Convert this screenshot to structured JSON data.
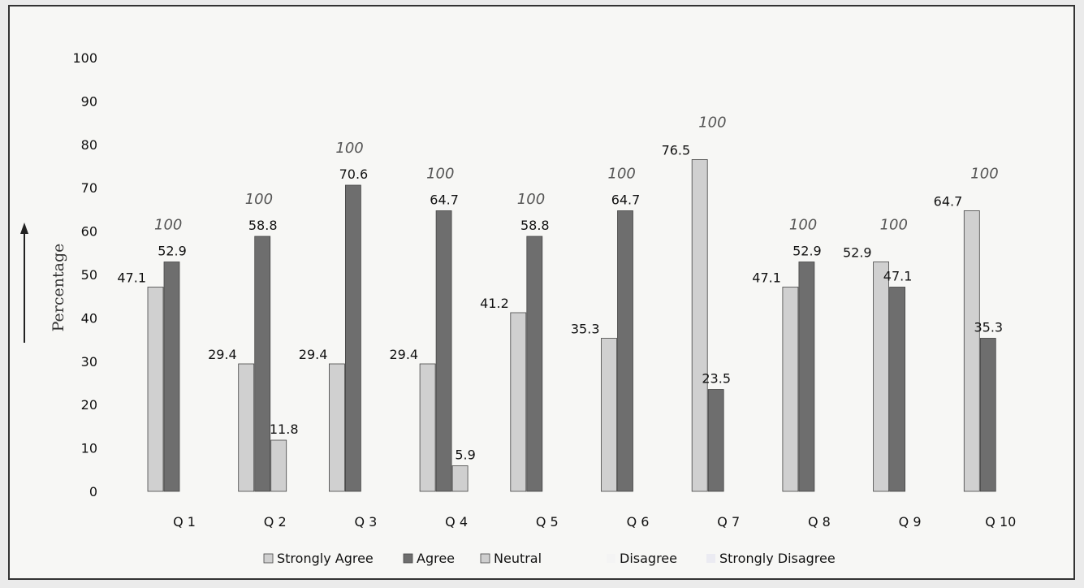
{
  "chart_data": {
    "type": "bar",
    "title": "",
    "xlabel": "",
    "ylabel": "Percentage",
    "ylim": [
      0,
      100
    ],
    "yticks": [
      "0",
      "10",
      "20",
      "30",
      "40",
      "50",
      "60",
      "70",
      "80",
      "90",
      "100"
    ],
    "categories": [
      "Q 1",
      "Q 2",
      "Q 3",
      "Q 4",
      "Q 5",
      "Q 6",
      "Q 7",
      "Q 8",
      "Q 9",
      "Q 10"
    ],
    "series": [
      {
        "name": "Strongly Agree",
        "color": "#d0d0d0",
        "values": [
          47.1,
          29.4,
          29.4,
          29.4,
          41.2,
          35.3,
          76.5,
          47.1,
          52.9,
          64.7
        ]
      },
      {
        "name": "Agree",
        "color": "#6e6e6e",
        "values": [
          52.9,
          58.8,
          70.6,
          64.7,
          58.8,
          64.7,
          23.5,
          52.9,
          47.1,
          35.3
        ]
      },
      {
        "name": "Neutral",
        "color": "#cfcfcf",
        "values": [
          0,
          11.8,
          0,
          5.9,
          0,
          0,
          0,
          0,
          0,
          0
        ]
      },
      {
        "name": "Disagree",
        "color": "#f4f4f4",
        "values": [
          0,
          0,
          0,
          0,
          0,
          0,
          0,
          0,
          0,
          0
        ]
      },
      {
        "name": "Strongly Disagree",
        "color": "#ebebf2",
        "values": [
          0,
          0,
          0,
          0,
          0,
          0,
          0,
          0,
          0,
          0
        ]
      }
    ],
    "annotations": [
      "100",
      "100",
      "100",
      "100",
      "100",
      "100",
      "100",
      "100",
      "100",
      "100"
    ],
    "legend_position": "bottom",
    "grid": false
  }
}
